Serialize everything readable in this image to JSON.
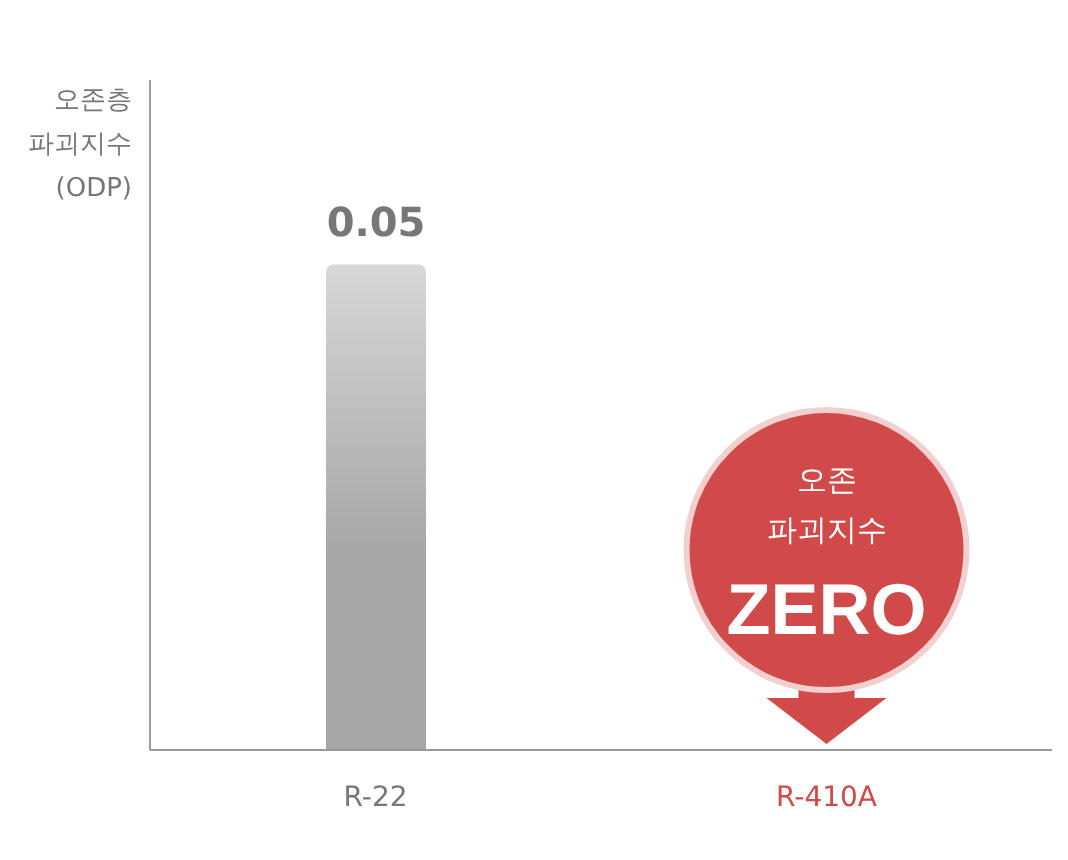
{
  "chart_data": {
    "type": "bar",
    "ylabel": "오존층\n파괴지수\n(ODP)",
    "categories": [
      "R-22",
      "R-410A"
    ],
    "values": [
      0.05,
      0
    ],
    "colors": [
      "#a6a6a6",
      "#d04a4a"
    ],
    "value_labels": [
      "0.05",
      null
    ],
    "annotations": [
      {
        "text": "오존\n파괴지수\nZERO",
        "x": "R-410A",
        "y": 0
      }
    ],
    "ylim": [
      0,
      0.069
    ],
    "grid": false,
    "legend": false
  }
}
